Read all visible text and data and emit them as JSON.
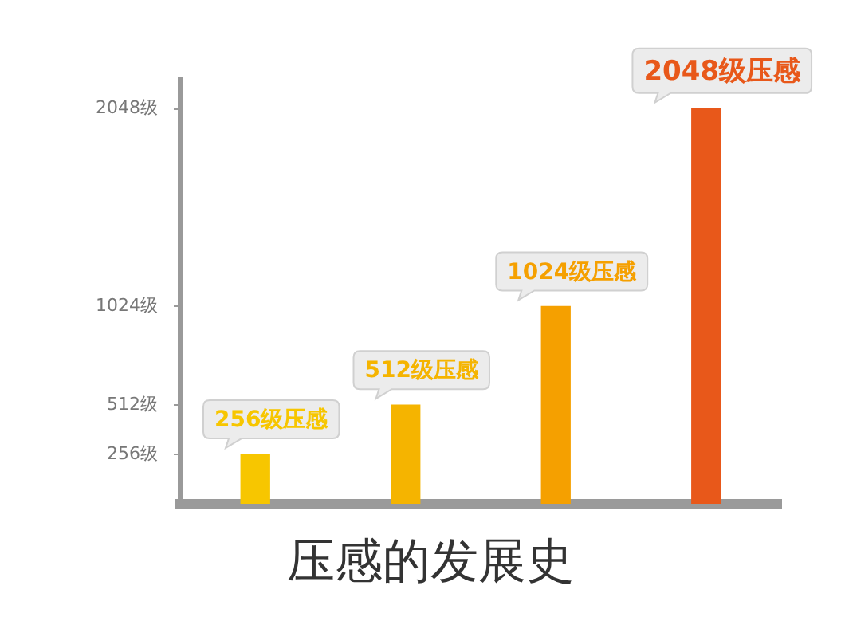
{
  "chart_data": {
    "type": "bar",
    "title": "压感的发展史",
    "categories": [
      null,
      null,
      null,
      null
    ],
    "values": [
      256,
      512,
      1024,
      2048
    ],
    "colors": [
      "#f7c600",
      "#f5b400",
      "#f5a000",
      "#e8581a"
    ],
    "value_labels": [
      "256级压感",
      "512级压感",
      "1024级压感",
      "2048级压感"
    ],
    "ylim": [
      0,
      2200
    ],
    "yticks": [
      {
        "value": 256,
        "label": "256级"
      },
      {
        "value": 512,
        "label": "512级"
      },
      {
        "value": 1024,
        "label": "1024级"
      },
      {
        "value": 2048,
        "label": "2048级"
      }
    ],
    "tick_labels": "y",
    "grid": false
  }
}
